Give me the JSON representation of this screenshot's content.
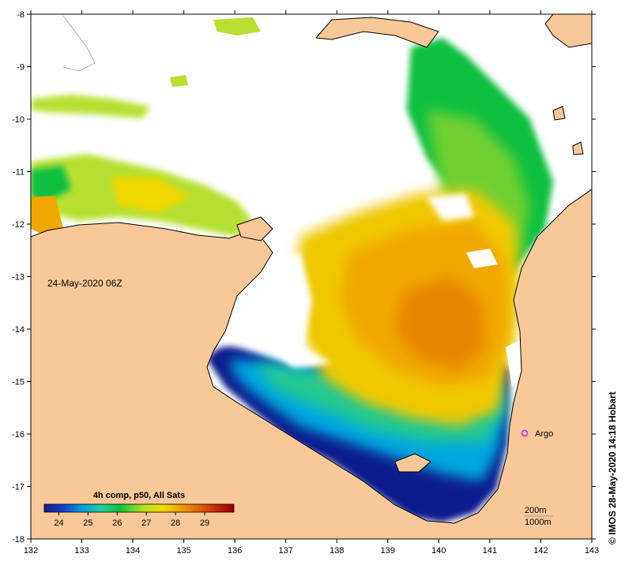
{
  "map": {
    "date_label": "24-May-2020 06Z",
    "credit": "© IMOS 28-May-2020 14:18 Hobart",
    "x_ticks": [
      "132",
      "133",
      "134",
      "135",
      "136",
      "137",
      "138",
      "139",
      "140",
      "141",
      "142",
      "143"
    ],
    "y_ticks": [
      "-8",
      "-9",
      "-10",
      "-11",
      "-12",
      "-13",
      "-14",
      "-15",
      "-16",
      "-17",
      "-18"
    ],
    "lon_range": [
      132,
      143
    ],
    "lat_range": [
      -18,
      -8
    ],
    "colors": {
      "land": "#f9c898",
      "cloud": "#ffffff",
      "coast": "#000000",
      "argo_marker": "#e040e0"
    },
    "argo": {
      "label": "Argo",
      "lon": 141.7,
      "lat": -16.0
    },
    "scale": {
      "label_200m": "200m",
      "label_1000m": "1000m"
    },
    "colorbar": {
      "title": "4h comp, p50, All Sats",
      "range": [
        23.5,
        30
      ],
      "tick_values": [
        24,
        25,
        26,
        27,
        28,
        29
      ],
      "tick_labels": [
        "24",
        "25",
        "26",
        "27",
        "28",
        "29"
      ],
      "palette": [
        "#1a1a8c",
        "#1040d0",
        "#00a0e0",
        "#20d0a0",
        "#10c040",
        "#b0e020",
        "#f0e000",
        "#f0a000",
        "#e06000",
        "#c02000",
        "#900000"
      ]
    }
  }
}
